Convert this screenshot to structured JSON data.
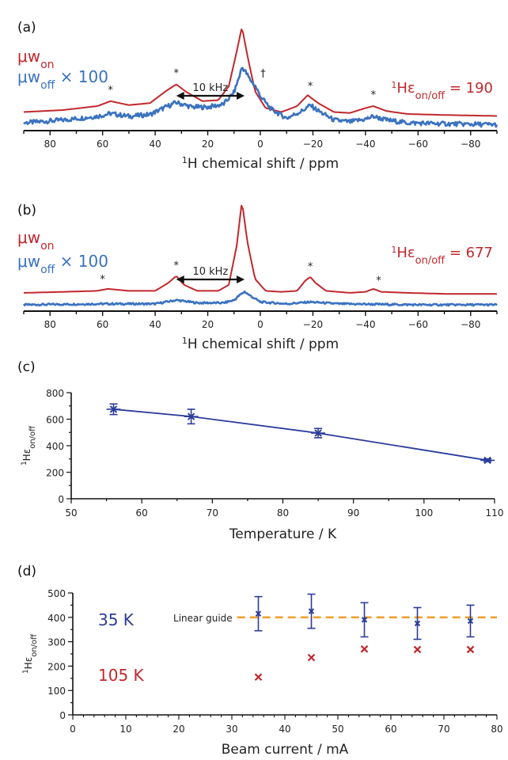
{
  "colors": {
    "on": "#c0282d",
    "off": "#3a72c0",
    "temp_series": "#2b3c9a",
    "current_35k": "#2b3c9a",
    "current_105k": "#c0282d",
    "guide": "#f0a030",
    "axis": "#111111"
  },
  "chart_data": [
    {
      "panel": "(a)",
      "type": "line",
      "xlabel_sup": "1",
      "xlabel": "H chemical shift / ppm",
      "xlim": [
        90,
        -90
      ],
      "xticks": [
        80,
        60,
        40,
        20,
        0,
        -20,
        -40,
        -60,
        -80
      ],
      "xtick_labels": [
        "80",
        "60",
        "40",
        "20",
        "0",
        "−20",
        "−40",
        "−60",
        "−80"
      ],
      "series": [
        {
          "name": "μw",
          "name_sub": "on",
          "name_suffix": "",
          "x": [
            90,
            75,
            62,
            57,
            50,
            42,
            36,
            32,
            28,
            22,
            16,
            12,
            9,
            7,
            5,
            2,
            -2,
            -8,
            -14,
            -18,
            -22,
            -28,
            -34,
            -40,
            -43,
            -48,
            -56,
            -70,
            -90
          ],
          "y": [
            0.14,
            0.16,
            0.2,
            0.25,
            0.21,
            0.23,
            0.35,
            0.42,
            0.34,
            0.25,
            0.26,
            0.4,
            0.75,
            1.0,
            0.72,
            0.35,
            0.18,
            0.14,
            0.2,
            0.31,
            0.23,
            0.14,
            0.13,
            0.18,
            0.2,
            0.15,
            0.12,
            0.11,
            0.1
          ]
        },
        {
          "name": "μw",
          "name_sub": "off",
          "name_suffix": " × 100",
          "x": [
            90,
            75,
            62,
            57,
            50,
            42,
            36,
            32,
            26,
            20,
            14,
            10,
            8,
            7,
            6,
            4,
            2,
            0,
            -4,
            -10,
            -16,
            -19,
            -22,
            -28,
            -34,
            -40,
            -43,
            -48,
            -56,
            -70,
            -90
          ],
          "y": [
            0.05,
            0.08,
            0.12,
            0.15,
            0.12,
            0.14,
            0.22,
            0.27,
            0.22,
            0.22,
            0.25,
            0.38,
            0.55,
            0.65,
            0.62,
            0.52,
            0.45,
            0.34,
            0.2,
            0.1,
            0.18,
            0.24,
            0.18,
            0.08,
            0.06,
            0.09,
            0.12,
            0.08,
            0.05,
            0.04,
            0.03
          ]
        }
      ],
      "annotations": {
        "spinning_sidebands_x": [
          57,
          32,
          -19,
          -43
        ],
        "spinning_sideband_symbol": "*",
        "dagger_x": -1,
        "dagger_symbol": "†",
        "arrow_text": "10 kHz",
        "arrow_from_x": 32,
        "arrow_to_x": 6,
        "enhancement_prefix_sup": "1",
        "enhancement_prefix": "Hε",
        "enhancement_sub": "on/off",
        "enhancement_value": " = 190"
      }
    },
    {
      "panel": "(b)",
      "type": "line",
      "xlabel_sup": "1",
      "xlabel": "H chemical shift / ppm",
      "xlim": [
        90,
        -90
      ],
      "xticks": [
        80,
        60,
        40,
        20,
        0,
        -20,
        -40,
        -60,
        -80
      ],
      "xtick_labels": [
        "80",
        "60",
        "40",
        "20",
        "0",
        "−20",
        "−40",
        "−60",
        "−80"
      ],
      "series": [
        {
          "name": "μw",
          "name_sub": "on",
          "name_suffix": "",
          "x": [
            90,
            75,
            62,
            58,
            50,
            40,
            35,
            32,
            29,
            24,
            16,
            12,
            9,
            7,
            5,
            2,
            -2,
            -8,
            -14,
            -17,
            -19,
            -21,
            -25,
            -34,
            -40,
            -43,
            -46,
            -56,
            -70,
            -90
          ],
          "y": [
            0.08,
            0.09,
            0.1,
            0.12,
            0.1,
            0.1,
            0.18,
            0.25,
            0.16,
            0.1,
            0.1,
            0.16,
            0.55,
            1.0,
            0.6,
            0.22,
            0.1,
            0.09,
            0.1,
            0.2,
            0.24,
            0.18,
            0.1,
            0.08,
            0.09,
            0.12,
            0.09,
            0.08,
            0.07,
            0.07
          ]
        },
        {
          "name": "μw",
          "name_sub": "off",
          "name_suffix": " × 100",
          "x": [
            90,
            60,
            40,
            32,
            24,
            14,
            10,
            8,
            6,
            4,
            0,
            -10,
            -19,
            -30,
            -60,
            -90
          ],
          "y": [
            0.0,
            0.01,
            0.01,
            0.05,
            0.02,
            0.02,
            0.05,
            0.1,
            0.14,
            0.1,
            0.03,
            0.01,
            0.03,
            0.01,
            0.0,
            0.0
          ]
        }
      ],
      "annotations": {
        "spinning_sidebands_x": [
          60,
          32,
          -19,
          -45
        ],
        "spinning_sideband_symbol": "*",
        "arrow_text": "10 kHz",
        "arrow_from_x": 32,
        "arrow_to_x": 6,
        "enhancement_prefix_sup": "1",
        "enhancement_prefix": "Hε",
        "enhancement_sub": "on/off",
        "enhancement_value": " = 677"
      }
    },
    {
      "panel": "(c)",
      "type": "line",
      "xlabel": "Temperature / K",
      "ylabel_sup": "1",
      "ylabel": "Hε",
      "ylabel_sub": "on/off",
      "xlim": [
        50,
        110
      ],
      "ylim": [
        0,
        800
      ],
      "xticks": [
        50,
        60,
        70,
        80,
        90,
        100,
        110
      ],
      "yticks": [
        0,
        200,
        400,
        600,
        800
      ],
      "series": [
        {
          "x": [
            56,
            67,
            85,
            109
          ],
          "y": [
            675,
            620,
            495,
            290
          ],
          "yerr": [
            40,
            55,
            35,
            10
          ],
          "xerr": [
            1,
            1,
            1,
            1
          ]
        }
      ]
    },
    {
      "panel": "(d)",
      "type": "scatter",
      "xlabel": "Beam current / mA",
      "ylabel_sup": "1",
      "ylabel": "Hε",
      "ylabel_sub": "on/off",
      "xlim": [
        0,
        80
      ],
      "ylim": [
        0,
        500
      ],
      "xticks": [
        0,
        10,
        20,
        30,
        40,
        50,
        60,
        70,
        80
      ],
      "yticks": [
        0,
        100,
        200,
        300,
        400,
        500
      ],
      "series": [
        {
          "name": "35 K",
          "x": [
            35,
            45,
            55,
            65,
            75
          ],
          "y": [
            415,
            425,
            390,
            375,
            385
          ],
          "yerr": [
            70,
            70,
            70,
            65,
            65
          ]
        },
        {
          "name": "105 K",
          "x": [
            35,
            45,
            55,
            65,
            75
          ],
          "y": [
            155,
            235,
            270,
            268,
            268
          ]
        }
      ],
      "guide": {
        "label": "Linear guide",
        "y": 400,
        "x_start": 31,
        "x_end": 80
      }
    }
  ]
}
